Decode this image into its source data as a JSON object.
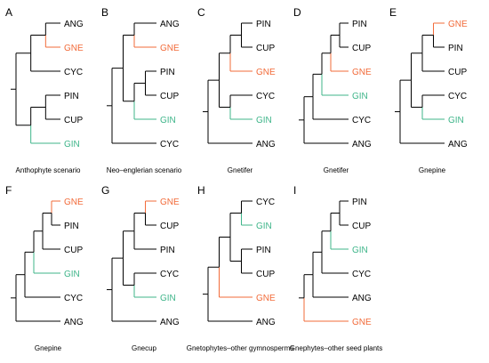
{
  "colors": {
    "line": "#000000",
    "gne": "#f26b3a",
    "gin": "#3fb58a",
    "text": "#000000"
  },
  "panels": [
    {
      "letter": "A",
      "caption": "Anthophyte scenario",
      "tree": [
        [
          [
            [
              "ANG",
              "GNE"
            ],
            "CYC"
          ],
          [
            [
              "PIN",
              "CUP"
            ],
            "GIN"
          ]
        ]
      ],
      "highlight": {
        "GNE": "gne",
        "GIN": "gin"
      }
    },
    {
      "letter": "B",
      "caption": "Neo–englerian scenario",
      "tree": [
        [
          [
            [
              "ANG",
              "GNE"
            ],
            [
              [
                "PIN",
                "CUP"
              ],
              "GIN"
            ]
          ],
          "CYC"
        ]
      ],
      "highlight": {
        "GNE": "gne",
        "GIN": "gin"
      }
    },
    {
      "letter": "C",
      "caption": "Gnetifer",
      "tree": [
        [
          [
            [
              [
                "PIN",
                "CUP"
              ],
              "GNE"
            ],
            [
              "CYC",
              "GIN"
            ]
          ],
          "ANG"
        ]
      ],
      "highlight": {
        "GNE": "gne",
        "GIN": "gin"
      }
    },
    {
      "letter": "D",
      "caption": "Gnetifer",
      "tree": [
        [
          [
            [
              [
                [
                  "PIN",
                  "CUP"
                ],
                "GNE"
              ],
              "GIN"
            ],
            "CYC"
          ],
          "ANG"
        ]
      ],
      "highlight": {
        "GNE": "gne",
        "GIN": "gin"
      }
    },
    {
      "letter": "E",
      "caption": "Gnepine",
      "tree": [
        [
          [
            [
              [
                [
                  "GNE",
                  "PIN"
                ],
                "CUP"
              ],
              [
                "CYC",
                "GIN"
              ]
            ]
          ],
          "ANG"
        ]
      ],
      "highlight": {
        "GNE": "gne",
        "GIN": "gin"
      }
    },
    {
      "letter": "F",
      "caption": "Gnepine",
      "tree": [
        [
          [
            [
              [
                [
                  "GNE",
                  "PIN"
                ],
                "CUP"
              ],
              "GIN"
            ],
            "CYC"
          ],
          "ANG"
        ]
      ],
      "highlight": {
        "GNE": "gne",
        "GIN": "gin"
      }
    },
    {
      "letter": "G",
      "caption": "Gnecup",
      "tree": [
        [
          [
            [
              [
                [
                  "GNE",
                  "CUP"
                ],
                "PIN"
              ],
              [
                "CYC",
                "GIN"
              ]
            ]
          ],
          "ANG"
        ]
      ],
      "highlight": {
        "GNE": "gne",
        "GIN": "gin"
      }
    },
    {
      "letter": "H",
      "caption": "Gnetophytes–other gymnosperms",
      "tree": [
        [
          [
            [
              [
                "CYC",
                "GIN"
              ],
              [
                "PIN",
                "CUP"
              ]
            ],
            "GNE"
          ],
          "ANG"
        ]
      ],
      "highlight": {
        "GNE": "gne",
        "GIN": "gin"
      }
    },
    {
      "letter": "I",
      "caption": "Gnephytes–other seed plants",
      "tree": [
        [
          [
            [
              [
                [
                  "PIN",
                  "CUP"
                ],
                "GIN"
              ],
              "CYC"
            ],
            "ANG"
          ],
          "GNE"
        ]
      ],
      "highlight": {
        "GNE": "gne",
        "GIN": "gin"
      }
    }
  ]
}
